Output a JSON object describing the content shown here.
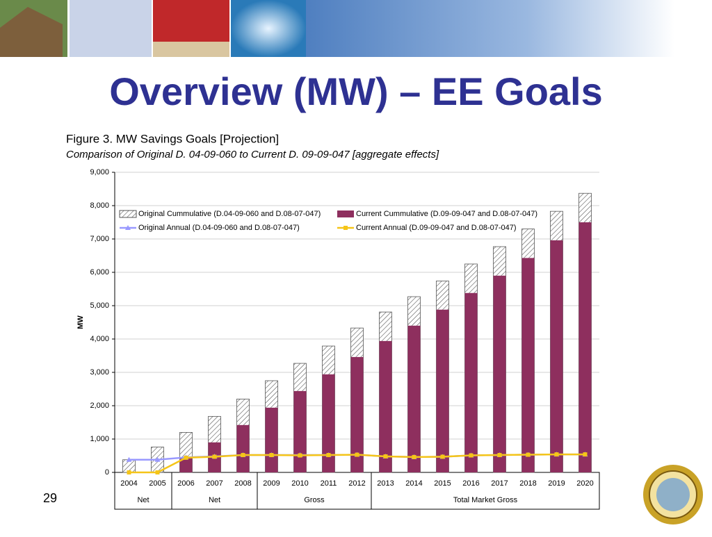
{
  "title": "Overview (MW) – EE Goals",
  "page_number": "29",
  "chart_data": {
    "type": "bar",
    "title": "Figure 3. MW Savings Goals [Projection]",
    "subtitle": "Comparison of Original D. 04-09-060 to Current D. 09-09-047 [aggregate effects]",
    "y_label": "MW",
    "categories": [
      "2004",
      "2005",
      "2006",
      "2007",
      "2008",
      "2009",
      "2010",
      "2011",
      "2012",
      "2013",
      "2014",
      "2015",
      "2016",
      "2017",
      "2018",
      "2019",
      "2020"
    ],
    "groups": [
      {
        "label": "Net",
        "count": 2
      },
      {
        "label": "Net",
        "count": 3
      },
      {
        "label": "Gross",
        "count": 4
      },
      {
        "label": "Total Market Gross",
        "count": 8
      }
    ],
    "ylim": [
      0,
      9000
    ],
    "yticks": [
      0,
      {
        "value": 1000,
        "label": "1,000"
      },
      {
        "value": 2000,
        "label": "2,000"
      },
      {
        "value": 3000,
        "label": "3,000"
      },
      {
        "value": 4000,
        "label": "4,000"
      },
      {
        "value": 5000,
        "label": "5,000"
      },
      {
        "value": 6000,
        "label": "6,000"
      },
      {
        "value": 7000,
        "label": "7,000"
      },
      {
        "value": 8000,
        "label": "8,000"
      },
      {
        "value": 9000,
        "label": "9,000"
      }
    ],
    "grid": true,
    "legend": "top",
    "series": [
      {
        "name": "Original Cummulative (D.04-09-060 and D.08-07-047)",
        "type": "bar",
        "pattern": "hatch",
        "color": "#555555",
        "values": [
          380,
          760,
          1200,
          1680,
          2200,
          2750,
          3270,
          3790,
          4330,
          4810,
          5270,
          5740,
          6250,
          6770,
          7300,
          7830,
          8370
        ]
      },
      {
        "name": "Current Cummulative (D.09-09-047 and D.08-07-047)",
        "type": "bar",
        "color": "#8e2f5e",
        "values": [
          0,
          0,
          450,
          900,
          1420,
          1940,
          2440,
          2940,
          3460,
          3940,
          4400,
          4880,
          5380,
          5900,
          6430,
          6960,
          7500
        ]
      },
      {
        "name": "Original Annual (D.04-09-060 and D.08-07-047)",
        "type": "line",
        "marker": "triangle",
        "color": "#9999ff",
        "values": [
          380,
          380,
          450,
          480,
          520,
          520,
          520,
          520,
          530,
          480,
          460,
          470,
          510,
          520,
          530,
          540,
          540
        ]
      },
      {
        "name": "Current Annual (D.09-09-047 and D.08-07-047)",
        "type": "line",
        "marker": "square",
        "color": "#f5c518",
        "values": [
          0,
          0,
          440,
          470,
          520,
          520,
          510,
          520,
          530,
          480,
          460,
          470,
          510,
          520,
          530,
          540,
          540
        ]
      }
    ]
  }
}
